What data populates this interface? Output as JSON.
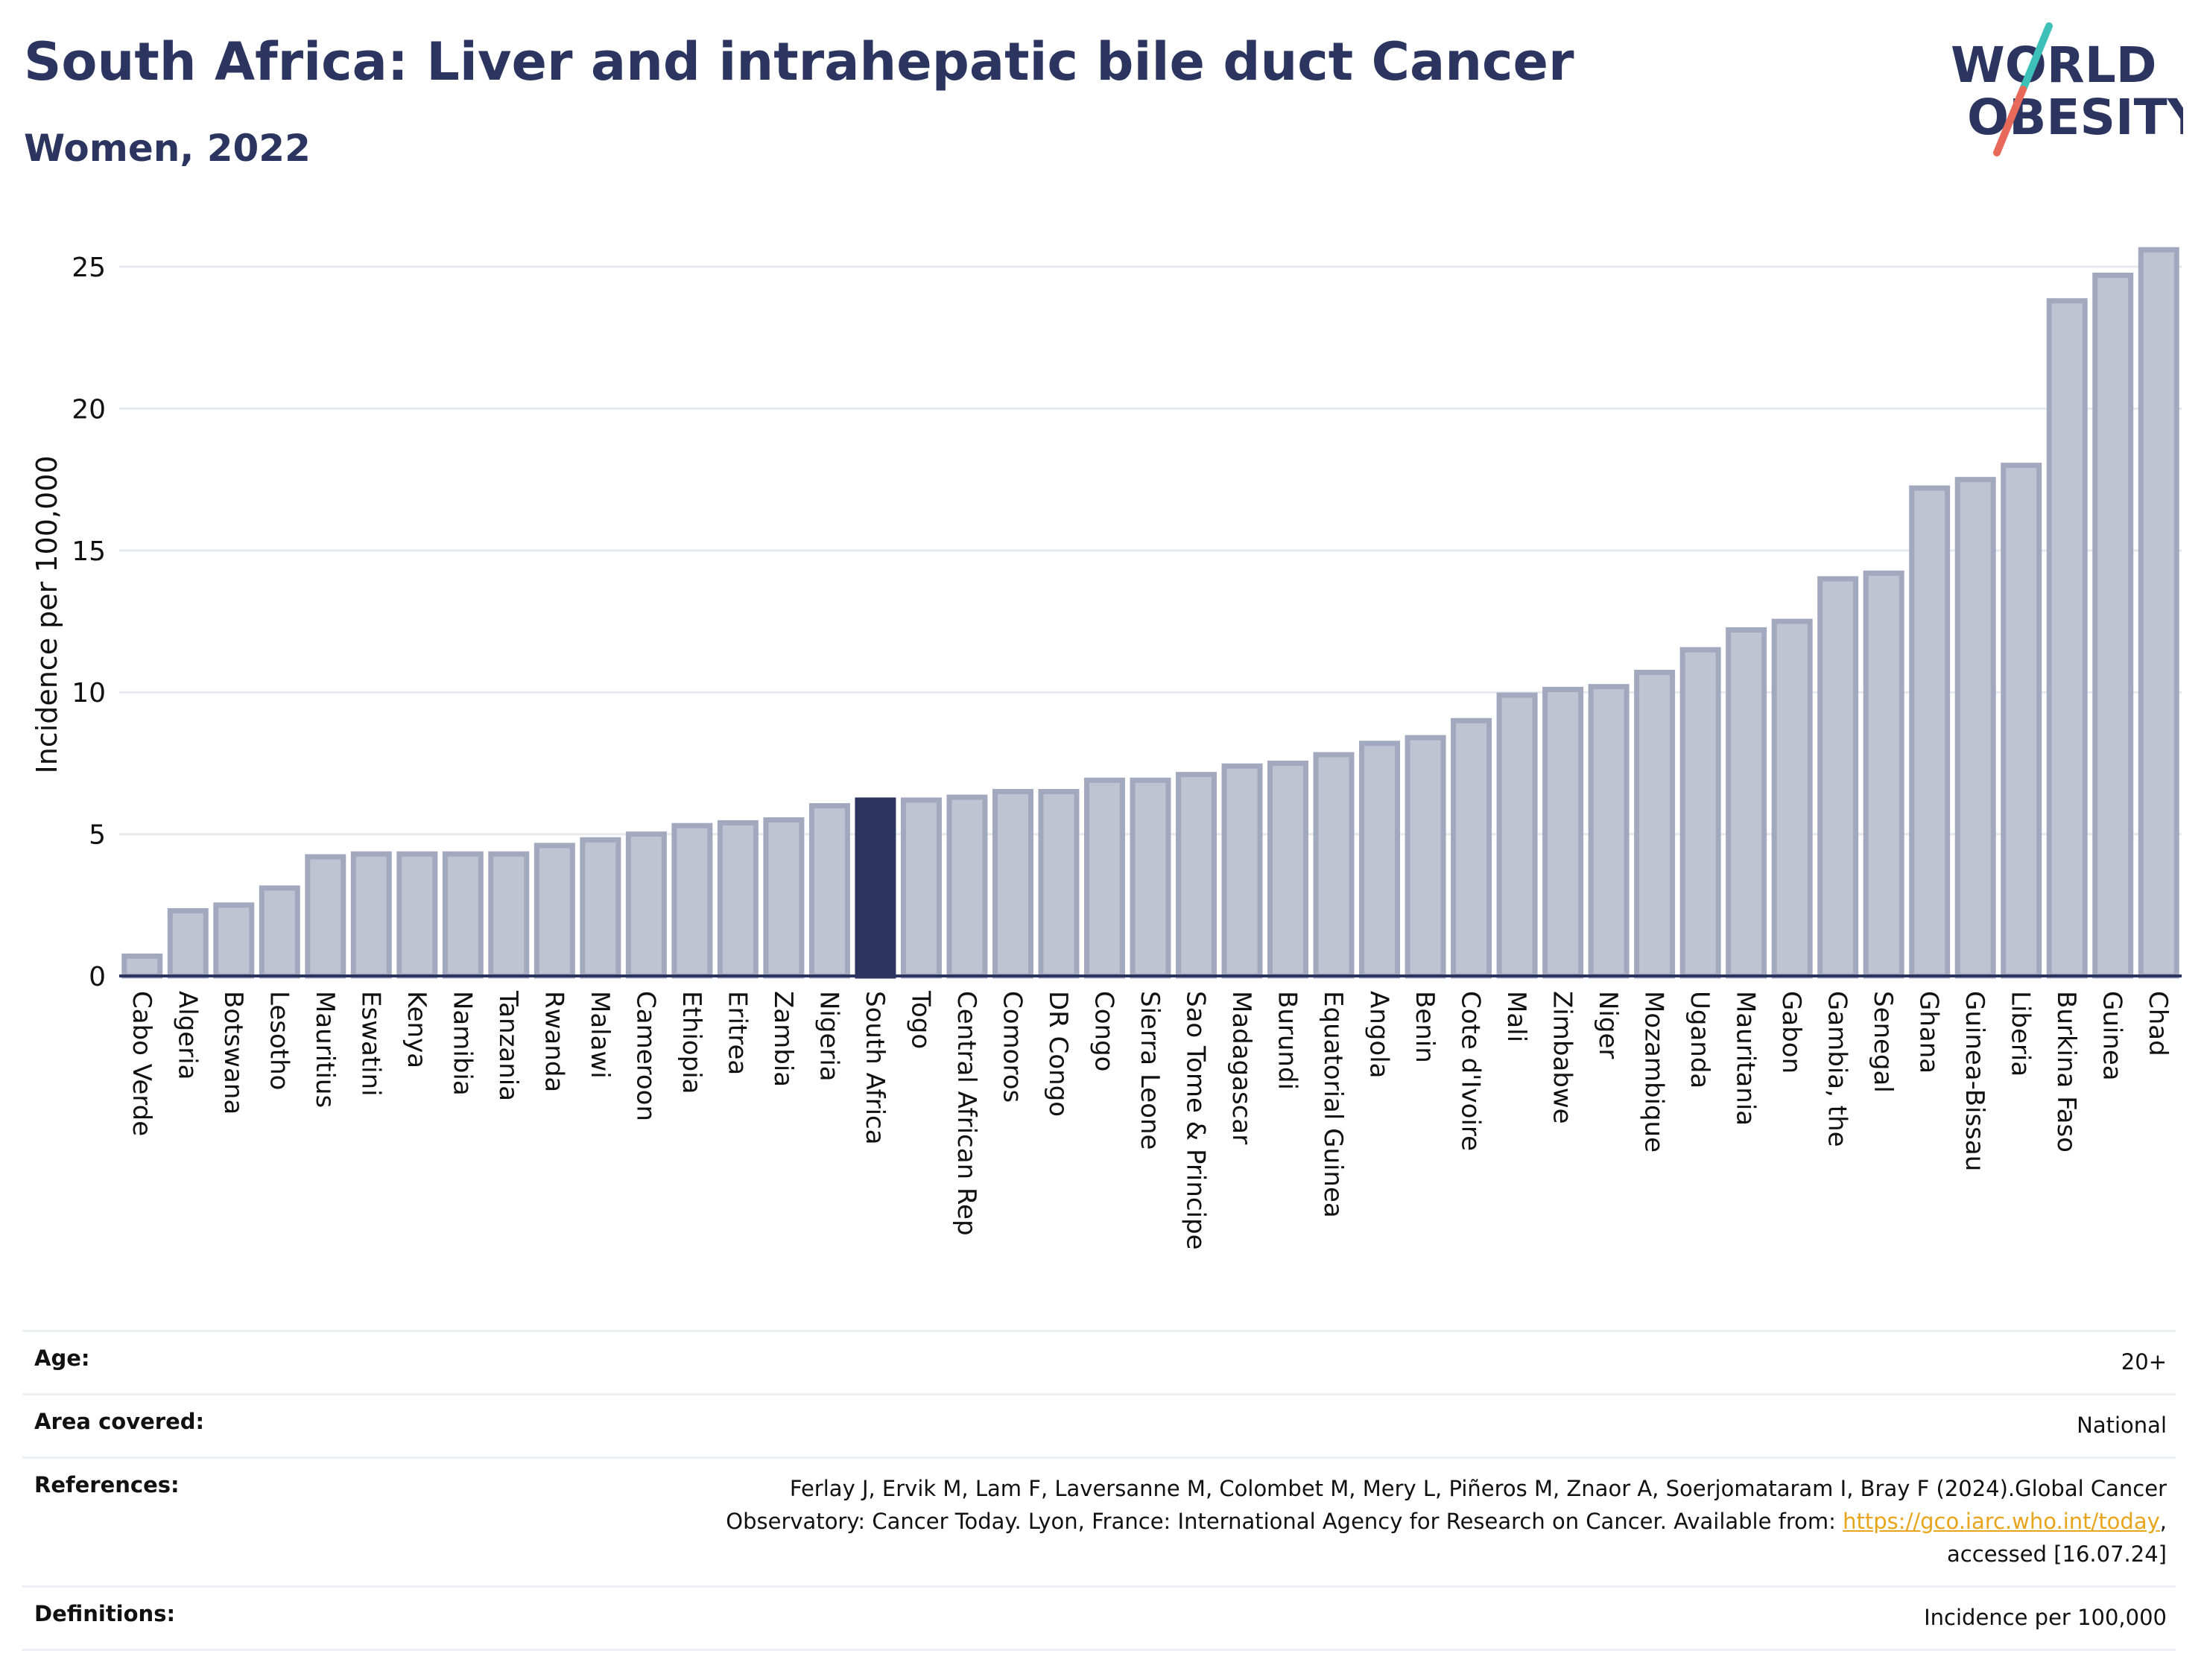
{
  "header": {
    "title": "South Africa: Liver and intrahepatic bile duct Cancer",
    "subtitle": "Women, 2022"
  },
  "logo": {
    "line1": "WORLD",
    "line2": "OBESITY",
    "accent_teal": "#3cc0b8",
    "accent_coral": "#e8695a"
  },
  "colors": {
    "bar": "#c0c4d2",
    "bar_stroke": "#a2a8be",
    "highlight": "#2b3560"
  },
  "chart_data": {
    "type": "bar",
    "ylabel": "Incidence per 100,000",
    "ylim": [
      0,
      26
    ],
    "yticks": [
      0,
      5,
      10,
      15,
      20,
      25
    ],
    "grid": true,
    "highlight": "South Africa",
    "categories": [
      "Cabo Verde",
      "Algeria",
      "Botswana",
      "Lesotho",
      "Mauritius",
      "Eswatini",
      "Kenya",
      "Namibia",
      "Tanzania",
      "Rwanda",
      "Malawi",
      "Cameroon",
      "Ethiopia",
      "Eritrea",
      "Zambia",
      "Nigeria",
      "South Africa",
      "Togo",
      "Central African Rep",
      "Comoros",
      "DR Congo",
      "Congo",
      "Sierra Leone",
      "Sao Tome & Principe",
      "Madagascar",
      "Burundi",
      "Equatorial Guinea",
      "Angola",
      "Benin",
      "Cote d'Ivoire",
      "Mali",
      "Zimbabwe",
      "Niger",
      "Mozambique",
      "Uganda",
      "Mauritania",
      "Gabon",
      "Gambia, the",
      "Senegal",
      "Ghana",
      "Guinea-Bissau",
      "Liberia",
      "Burkina Faso",
      "Guinea",
      "Chad"
    ],
    "values": [
      0.7,
      2.3,
      2.5,
      3.1,
      4.2,
      4.3,
      4.3,
      4.3,
      4.3,
      4.6,
      4.8,
      5.0,
      5.3,
      5.4,
      5.5,
      6.0,
      6.2,
      6.2,
      6.3,
      6.5,
      6.5,
      6.9,
      6.9,
      7.1,
      7.4,
      7.5,
      7.8,
      8.2,
      8.4,
      9.0,
      9.9,
      10.1,
      10.2,
      10.7,
      11.5,
      12.2,
      12.5,
      14.0,
      14.2,
      17.2,
      17.5,
      18.0,
      23.8,
      24.7,
      25.6
    ]
  },
  "meta": {
    "age_label": "Age:",
    "age_value": "20+",
    "area_label": "Area covered:",
    "area_value": "National",
    "references_label": "References:",
    "references_line1": "Ferlay J, Ervik M, Lam F, Laversanne M, Colombet M, Mery L, Piñeros M, Znaor A, Soerjomataram I, Bray F (2024).Global Cancer",
    "references_line2_prefix": "Observatory: Cancer Today. Lyon, France: International Agency for Research on Cancer. Available from:",
    "references_link": "https://gco.iarc.who.int/today",
    "references_line2_suffix": ",",
    "references_line3": "accessed [16.07.24]",
    "definitions_label": "Definitions:",
    "definitions_value": "Incidence per 100,000"
  }
}
